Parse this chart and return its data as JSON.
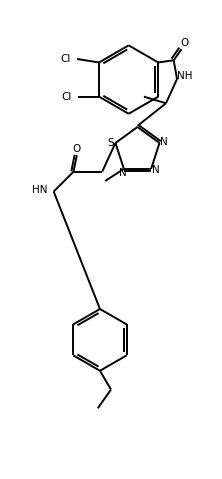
{
  "figsize": [
    2.22,
    4.79
  ],
  "dpi": 100,
  "bg_color": "#ffffff",
  "line_color": "#000000",
  "lw": 1.4,
  "fs": 7.5,
  "xlim": [
    0,
    10
  ],
  "ylim": [
    0,
    21.5
  ]
}
